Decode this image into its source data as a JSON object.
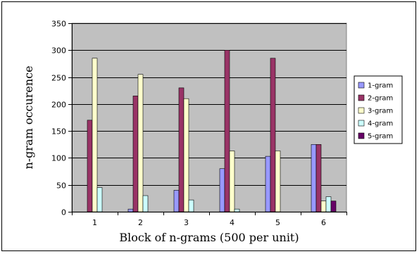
{
  "chart_data": {
    "type": "bar",
    "categories": [
      "1",
      "2",
      "3",
      "4",
      "5",
      "6"
    ],
    "series": [
      {
        "name": "1-gram",
        "color": "#9999FF",
        "values": [
          0,
          5,
          40,
          80,
          103,
          125
        ]
      },
      {
        "name": "2-gram",
        "color": "#993366",
        "values": [
          170,
          215,
          230,
          300,
          285,
          125
        ]
      },
      {
        "name": "3-gram",
        "color": "#FFFFCC",
        "values": [
          285,
          255,
          210,
          113,
          113,
          20
        ]
      },
      {
        "name": "4-gram",
        "color": "#CCFFFF",
        "values": [
          45,
          30,
          22,
          5,
          0,
          28
        ]
      },
      {
        "name": "5-gram",
        "color": "#660066",
        "values": [
          0,
          0,
          0,
          0,
          0,
          20
        ]
      }
    ],
    "xlabel": "Block of n-grams (500 per unit)",
    "ylabel": "n-gram occurence",
    "ylim": [
      0,
      350
    ],
    "yticks": [
      0,
      50,
      100,
      150,
      200,
      250,
      300,
      350
    ],
    "grid": true,
    "plot_background": "#C0C0C0",
    "legend_position": "right"
  }
}
